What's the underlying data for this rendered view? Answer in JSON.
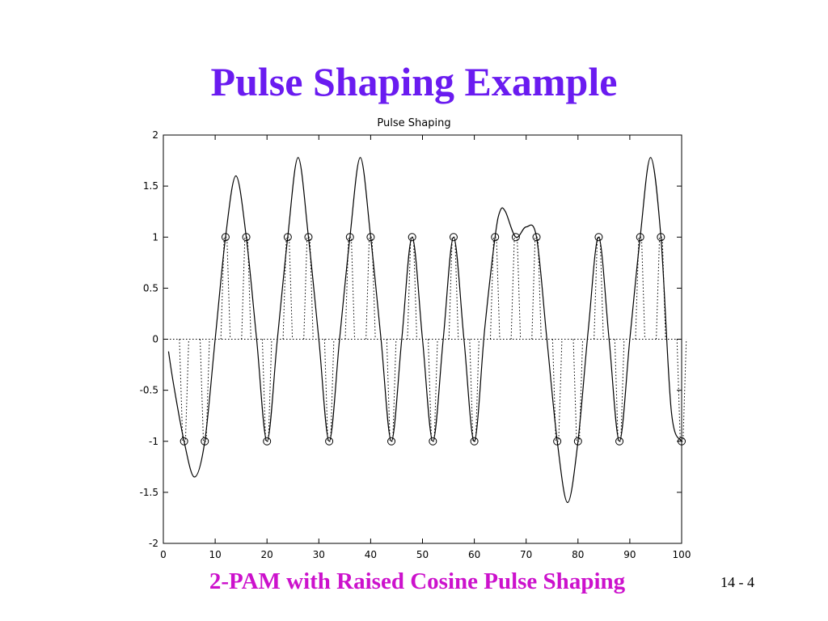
{
  "slide": {
    "title": "Pulse Shaping Example",
    "caption": "2-PAM with Raised Cosine Pulse Shaping",
    "page_number": "14 - 4"
  },
  "chart_data": {
    "type": "line",
    "title": "Pulse Shaping",
    "xlim": [
      0,
      100
    ],
    "ylim": [
      -2,
      2
    ],
    "xticks": [
      0,
      10,
      20,
      30,
      40,
      50,
      60,
      70,
      80,
      90,
      100
    ],
    "yticks": [
      -2,
      -1.5,
      -1,
      -0.5,
      0,
      0.5,
      1,
      1.5,
      2
    ],
    "grid": false,
    "series": [
      {
        "color": "#000000",
        "style": "solid",
        "x": [
          1,
          2,
          4,
          6,
          8,
          10,
          12,
          14,
          16,
          18,
          20,
          22,
          24,
          26,
          28,
          30,
          32,
          34,
          36,
          38,
          40,
          42,
          44,
          46,
          48,
          50,
          52,
          54,
          56,
          58,
          60,
          62,
          64,
          65,
          66,
          68,
          70,
          72,
          74,
          76,
          78,
          80,
          82,
          84,
          86,
          88,
          90,
          92,
          94,
          96,
          98,
          100
        ],
        "values": [
          -0.12,
          -0.45,
          -1,
          -1.35,
          -1,
          0,
          1,
          1.6,
          1,
          0,
          -1,
          0,
          1,
          1.78,
          1,
          0,
          -1,
          0,
          1,
          1.78,
          1,
          0,
          -1,
          0,
          1,
          0,
          -1,
          0,
          1,
          0,
          -1,
          0.1,
          1,
          1.26,
          1.25,
          1,
          1.1,
          1,
          0,
          -1,
          -1.6,
          -1,
          0.1,
          1,
          0,
          -1,
          0,
          1,
          1.78,
          1,
          -0.7,
          -1
        ]
      },
      {
        "color": "#000000",
        "style": "stem",
        "marker": "circle",
        "x": [
          4,
          8,
          12,
          16,
          20,
          24,
          28,
          32,
          36,
          40,
          44,
          48,
          52,
          56,
          60,
          64,
          68,
          72,
          76,
          80,
          84,
          88,
          92,
          96,
          100
        ],
        "values": [
          -1,
          -1,
          1,
          1,
          -1,
          1,
          1,
          -1,
          1,
          1,
          -1,
          1,
          -1,
          1,
          -1,
          1,
          1,
          1,
          -1,
          -1,
          1,
          -1,
          1,
          1,
          -1
        ]
      }
    ]
  }
}
